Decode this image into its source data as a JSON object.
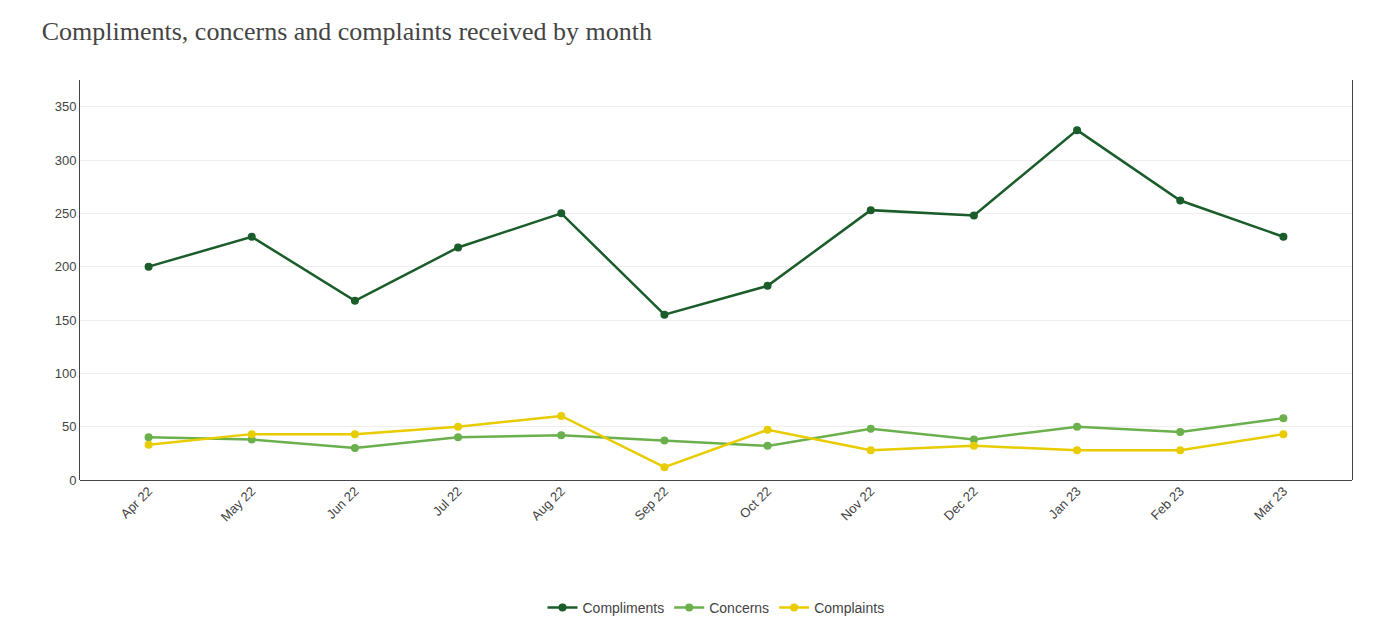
{
  "chart_data": {
    "type": "line",
    "title": "Compliments, concerns and complaints received by month",
    "categories": [
      "Apr 22",
      "May 22",
      "Jun 22",
      "Jul 22",
      "Aug 22",
      "Sep 22",
      "Oct 22",
      "Nov 22",
      "Dec 22",
      "Jan 23",
      "Feb 23",
      "Mar 23"
    ],
    "series": [
      {
        "name": "Compliments",
        "color": "#1a5c2a",
        "values": [
          200,
          228,
          168,
          218,
          250,
          155,
          182,
          253,
          248,
          328,
          262,
          228
        ]
      },
      {
        "name": "Concerns",
        "color": "#6ab04c",
        "values": [
          40,
          38,
          30,
          40,
          42,
          37,
          32,
          48,
          38,
          50,
          45,
          58
        ]
      },
      {
        "name": "Complaints",
        "color": "#e8cc00",
        "values": [
          33,
          43,
          43,
          50,
          60,
          12,
          47,
          28,
          32,
          28,
          28,
          43
        ]
      }
    ],
    "ylim": [
      0,
      375
    ],
    "yticks": [
      0,
      50,
      100,
      150,
      200,
      250,
      300,
      350
    ],
    "grid": true,
    "legend": "bottom",
    "marker": "circle"
  }
}
